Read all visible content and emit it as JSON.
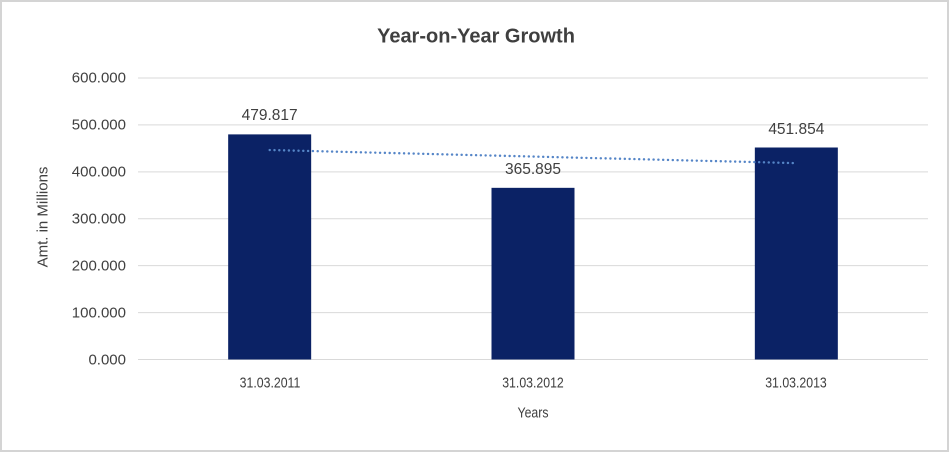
{
  "chart_data": {
    "type": "bar",
    "title": "Year-on-Year Growth",
    "categories": [
      "31.03.2011",
      "31.03.2012",
      "31.03.2013"
    ],
    "values": [
      479.817,
      365.895,
      451.854
    ],
    "data_labels": [
      "479.817",
      "365.895",
      "451.854"
    ],
    "xlabel": "Years",
    "ylabel": "Amt. in Millions",
    "ylim": [
      0,
      600
    ],
    "ytick_values": [
      0,
      100,
      200,
      300,
      400,
      500,
      600
    ],
    "ytick_labels": [
      "0.000",
      "100.000",
      "200.000",
      "300.000",
      "400.000",
      "500.000",
      "600.000"
    ],
    "grid": true,
    "legend": "none",
    "trendline": {
      "fit": "linear",
      "style": "dotted"
    },
    "colors": {
      "bar": "#0b2265",
      "trendline": "#5585c7",
      "gridline": "#d9d9d9",
      "axis_line": "#d9d9d9",
      "text": "#404040",
      "title_text": "#3f3f3f",
      "frame_border": "#d4d4d4",
      "background": "#ffffff"
    }
  }
}
